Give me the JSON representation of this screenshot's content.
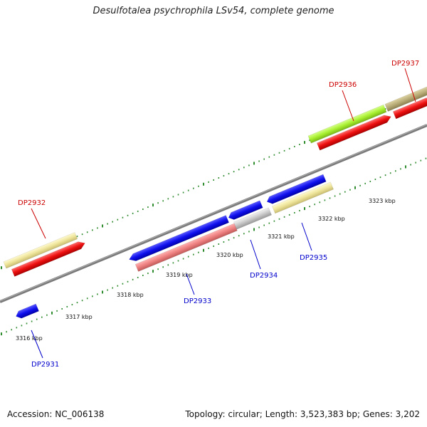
{
  "title": "Desulfotalea psychrophila LSv54, complete genome",
  "footer": {
    "accession": "Accession: NC_006138",
    "summary": "Topology: circular; Length: 3,523,383 bp; Genes: 3,202"
  },
  "colors": {
    "backbone": "#808080",
    "tick": "#2e8b2e",
    "label_forward": "#cc0000",
    "label_reverse": "#0000cc"
  },
  "scale_labels": [
    "3316 kbp",
    "3317 kbp",
    "3318 kbp",
    "3319 kbp",
    "3320 kbp",
    "3321 kbp",
    "3322 kbp",
    "3323 kbp"
  ],
  "genes": [
    {
      "name": "DP2931",
      "strand": "reverse",
      "color": "#0000ee",
      "labeled": true
    },
    {
      "name": "DP2932",
      "strand": "forward",
      "color": "#ee0000",
      "labeled": true
    },
    {
      "name": "DP2933",
      "strand": "reverse",
      "color": "#0000ee",
      "labeled": true
    },
    {
      "name": "DP2934",
      "strand": "reverse",
      "color": "#0000ee",
      "labeled": true
    },
    {
      "name": "DP2935",
      "strand": "reverse",
      "color": "#0000ee",
      "labeled": true
    },
    {
      "name": "DP2936",
      "strand": "forward",
      "color": "#ee0000",
      "labeled": true
    },
    {
      "name": "DP2937",
      "strand": "forward",
      "color": "#ee0000",
      "labeled": true
    }
  ]
}
